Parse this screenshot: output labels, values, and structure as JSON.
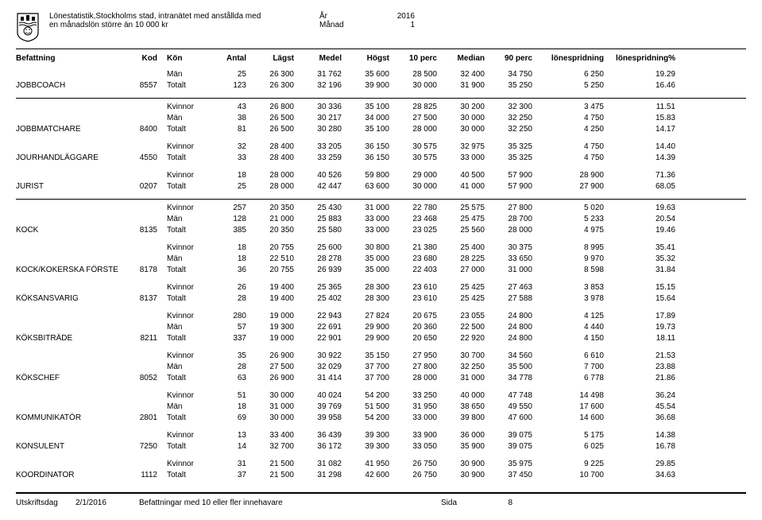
{
  "header": {
    "org": "Stockholms stad",
    "title1": "Lönestatistik,Stockholms stad, intranätet med anstållda med",
    "title2": "en månadslön större än 10 000 kr",
    "year_label": "År",
    "year_value": "2016",
    "month_label": "Månad",
    "month_value": "1"
  },
  "columns": {
    "befattning": "Befattning",
    "kod": "Kod",
    "kon": "Kön",
    "antal": "Antal",
    "lagst": "Lägst",
    "medel": "Medel",
    "hogst": "Högst",
    "perc10": "10 perc",
    "median": "Median",
    "perc90": "90 perc",
    "spridning": "lönespridning",
    "spridningp": "lönespridning%"
  },
  "jobs": [
    {
      "name": "JOBBCOACH",
      "kod": "8557",
      "divided": false,
      "rows": [
        {
          "kon": "Män",
          "antal": "25",
          "lagst": "26 300",
          "medel": "31 762",
          "hogst": "35 600",
          "p10": "28 500",
          "median": "32 400",
          "p90": "34 750",
          "spr": "6 250",
          "sprp": "19.29"
        },
        {
          "kon": "Totalt",
          "antal": "123",
          "lagst": "26 300",
          "medel": "32 196",
          "hogst": "39 900",
          "p10": "30 000",
          "median": "31 900",
          "p90": "35 250",
          "spr": "5 250",
          "sprp": "16.46"
        }
      ]
    },
    {
      "name": "JOBBMATCHARE",
      "kod": "8400",
      "divided": true,
      "rows": [
        {
          "kon": "Kvinnor",
          "antal": "43",
          "lagst": "26 800",
          "medel": "30 336",
          "hogst": "35 100",
          "p10": "28 825",
          "median": "30 200",
          "p90": "32 300",
          "spr": "3 475",
          "sprp": "11.51"
        },
        {
          "kon": "Män",
          "antal": "38",
          "lagst": "26 500",
          "medel": "30 217",
          "hogst": "34 000",
          "p10": "27 500",
          "median": "30 000",
          "p90": "32 250",
          "spr": "4 750",
          "sprp": "15.83"
        },
        {
          "kon": "Totalt",
          "antal": "81",
          "lagst": "26 500",
          "medel": "30 280",
          "hogst": "35 100",
          "p10": "28 000",
          "median": "30 000",
          "p90": "32 250",
          "spr": "4 250",
          "sprp": "14.17"
        }
      ]
    },
    {
      "name": "JOURHANDLÄGGARE",
      "kod": "4550",
      "divided": false,
      "rows": [
        {
          "kon": "Kvinnor",
          "antal": "32",
          "lagst": "28 400",
          "medel": "33 205",
          "hogst": "36 150",
          "p10": "30 575",
          "median": "32 975",
          "p90": "35 325",
          "spr": "4 750",
          "sprp": "14.40"
        },
        {
          "kon": "Totalt",
          "antal": "33",
          "lagst": "28 400",
          "medel": "33 259",
          "hogst": "36 150",
          "p10": "30 575",
          "median": "33 000",
          "p90": "35 325",
          "spr": "4 750",
          "sprp": "14.39"
        }
      ]
    },
    {
      "name": "JURIST",
      "kod": "0207",
      "divided": false,
      "rows": [
        {
          "kon": "Kvinnor",
          "antal": "18",
          "lagst": "28 000",
          "medel": "40 526",
          "hogst": "59 800",
          "p10": "29 000",
          "median": "40 500",
          "p90": "57 900",
          "spr": "28 900",
          "sprp": "71.36"
        },
        {
          "kon": "Totalt",
          "antal": "25",
          "lagst": "28 000",
          "medel": "42 447",
          "hogst": "63 600",
          "p10": "30 000",
          "median": "41 000",
          "p90": "57 900",
          "spr": "27 900",
          "sprp": "68.05"
        }
      ]
    },
    {
      "name": "KOCK",
      "kod": "8135",
      "divided": true,
      "rows": [
        {
          "kon": "Kvinnor",
          "antal": "257",
          "lagst": "20 350",
          "medel": "25 430",
          "hogst": "31 000",
          "p10": "22 780",
          "median": "25 575",
          "p90": "27 800",
          "spr": "5 020",
          "sprp": "19.63"
        },
        {
          "kon": "Män",
          "antal": "128",
          "lagst": "21 000",
          "medel": "25 883",
          "hogst": "33 000",
          "p10": "23 468",
          "median": "25 475",
          "p90": "28 700",
          "spr": "5 233",
          "sprp": "20.54"
        },
        {
          "kon": "Totalt",
          "antal": "385",
          "lagst": "20 350",
          "medel": "25 580",
          "hogst": "33 000",
          "p10": "23 025",
          "median": "25 560",
          "p90": "28 000",
          "spr": "4 975",
          "sprp": "19.46"
        }
      ]
    },
    {
      "name": "KOCK/KOKERSKA FÖRSTE",
      "kod": "8178",
      "divided": false,
      "rows": [
        {
          "kon": "Kvinnor",
          "antal": "18",
          "lagst": "20 755",
          "medel": "25 600",
          "hogst": "30 800",
          "p10": "21 380",
          "median": "25 400",
          "p90": "30 375",
          "spr": "8 995",
          "sprp": "35.41"
        },
        {
          "kon": "Män",
          "antal": "18",
          "lagst": "22 510",
          "medel": "28 278",
          "hogst": "35 000",
          "p10": "23 680",
          "median": "28 225",
          "p90": "33 650",
          "spr": "9 970",
          "sprp": "35.32"
        },
        {
          "kon": "Totalt",
          "antal": "36",
          "lagst": "20 755",
          "medel": "26 939",
          "hogst": "35 000",
          "p10": "22 403",
          "median": "27 000",
          "p90": "31 000",
          "spr": "8 598",
          "sprp": "31.84"
        }
      ]
    },
    {
      "name": "KÖKSANSVARIG",
      "kod": "8137",
      "divided": false,
      "rows": [
        {
          "kon": "Kvinnor",
          "antal": "26",
          "lagst": "19 400",
          "medel": "25 365",
          "hogst": "28 300",
          "p10": "23 610",
          "median": "25 425",
          "p90": "27 463",
          "spr": "3 853",
          "sprp": "15.15"
        },
        {
          "kon": "Totalt",
          "antal": "28",
          "lagst": "19 400",
          "medel": "25 402",
          "hogst": "28 300",
          "p10": "23 610",
          "median": "25 425",
          "p90": "27 588",
          "spr": "3 978",
          "sprp": "15.64"
        }
      ]
    },
    {
      "name": "KÖKSBITRÄDE",
      "kod": "8211",
      "divided": false,
      "rows": [
        {
          "kon": "Kvinnor",
          "antal": "280",
          "lagst": "19 000",
          "medel": "22 943",
          "hogst": "27 824",
          "p10": "20 675",
          "median": "23 055",
          "p90": "24 800",
          "spr": "4 125",
          "sprp": "17.89"
        },
        {
          "kon": "Män",
          "antal": "57",
          "lagst": "19 300",
          "medel": "22 691",
          "hogst": "29 900",
          "p10": "20 360",
          "median": "22 500",
          "p90": "24 800",
          "spr": "4 440",
          "sprp": "19.73"
        },
        {
          "kon": "Totalt",
          "antal": "337",
          "lagst": "19 000",
          "medel": "22 901",
          "hogst": "29 900",
          "p10": "20 650",
          "median": "22 920",
          "p90": "24 800",
          "spr": "4 150",
          "sprp": "18.11"
        }
      ]
    },
    {
      "name": "KÖKSCHEF",
      "kod": "8052",
      "divided": false,
      "rows": [
        {
          "kon": "Kvinnor",
          "antal": "35",
          "lagst": "26 900",
          "medel": "30 922",
          "hogst": "35 150",
          "p10": "27 950",
          "median": "30 700",
          "p90": "34 560",
          "spr": "6 610",
          "sprp": "21.53"
        },
        {
          "kon": "Män",
          "antal": "28",
          "lagst": "27 500",
          "medel": "32 029",
          "hogst": "37 700",
          "p10": "27 800",
          "median": "32 250",
          "p90": "35 500",
          "spr": "7 700",
          "sprp": "23.88"
        },
        {
          "kon": "Totalt",
          "antal": "63",
          "lagst": "26 900",
          "medel": "31 414",
          "hogst": "37 700",
          "p10": "28 000",
          "median": "31 000",
          "p90": "34 778",
          "spr": "6 778",
          "sprp": "21.86"
        }
      ]
    },
    {
      "name": "KOMMUNIKATÖR",
      "kod": "2801",
      "divided": false,
      "rows": [
        {
          "kon": "Kvinnor",
          "antal": "51",
          "lagst": "30 000",
          "medel": "40 024",
          "hogst": "54 200",
          "p10": "33 250",
          "median": "40 000",
          "p90": "47 748",
          "spr": "14 498",
          "sprp": "36.24"
        },
        {
          "kon": "Män",
          "antal": "18",
          "lagst": "31 000",
          "medel": "39 769",
          "hogst": "51 500",
          "p10": "31 950",
          "median": "38 650",
          "p90": "49 550",
          "spr": "17 600",
          "sprp": "45.54"
        },
        {
          "kon": "Totalt",
          "antal": "69",
          "lagst": "30 000",
          "medel": "39 958",
          "hogst": "54 200",
          "p10": "33 000",
          "median": "39 800",
          "p90": "47 600",
          "spr": "14 600",
          "sprp": "36.68"
        }
      ]
    },
    {
      "name": "KONSULENT",
      "kod": "7250",
      "divided": false,
      "rows": [
        {
          "kon": "Kvinnor",
          "antal": "13",
          "lagst": "33 400",
          "medel": "36 439",
          "hogst": "39 300",
          "p10": "33 900",
          "median": "36 000",
          "p90": "39 075",
          "spr": "5 175",
          "sprp": "14.38"
        },
        {
          "kon": "Totalt",
          "antal": "14",
          "lagst": "32 700",
          "medel": "36 172",
          "hogst": "39 300",
          "p10": "33 050",
          "median": "35 900",
          "p90": "39 075",
          "spr": "6 025",
          "sprp": "16.78"
        }
      ]
    },
    {
      "name": "KOORDINATOR",
      "kod": "1112",
      "divided": false,
      "rows": [
        {
          "kon": "Kvinnor",
          "antal": "31",
          "lagst": "21 500",
          "medel": "31 082",
          "hogst": "41 950",
          "p10": "26 750",
          "median": "30 900",
          "p90": "35 975",
          "spr": "9 225",
          "sprp": "29.85"
        },
        {
          "kon": "Totalt",
          "antal": "37",
          "lagst": "21 500",
          "medel": "31 298",
          "hogst": "42 600",
          "p10": "26 750",
          "median": "30 900",
          "p90": "37 450",
          "spr": "10 700",
          "sprp": "34.63"
        }
      ]
    }
  ],
  "footer": {
    "print_label": "Utskriftsdag",
    "print_date": "2/1/2016",
    "note": "Befattningar med 10 eller fler innehavare",
    "page_label": "Sida",
    "page_num": "8"
  }
}
